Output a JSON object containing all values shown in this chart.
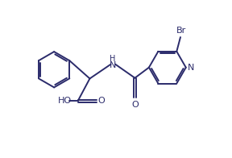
{
  "bg_color": "#ffffff",
  "line_color": "#2b2b6b",
  "line_width": 1.4,
  "font_size": 7.5,
  "fig_width": 2.88,
  "fig_height": 1.96,
  "dpi": 100,
  "xlim": [
    -0.5,
    10.5
  ],
  "ylim": [
    0.0,
    7.2
  ]
}
